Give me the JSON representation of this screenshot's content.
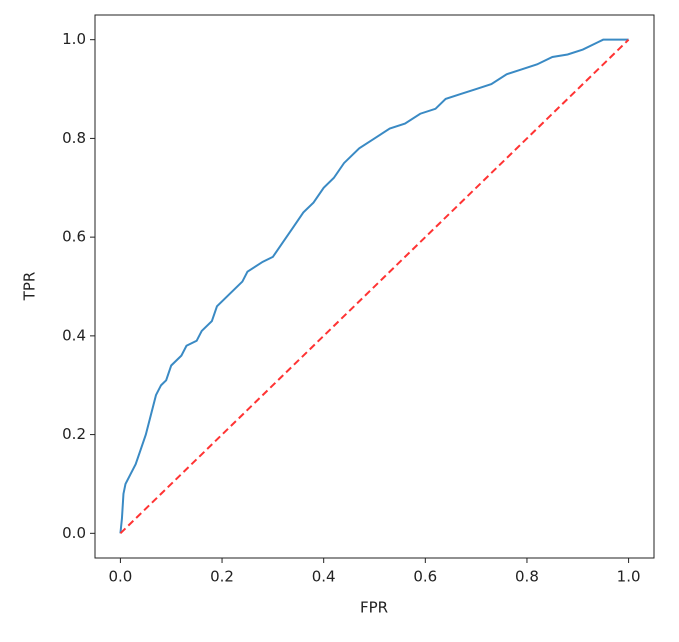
{
  "chart_data": {
    "type": "line",
    "xlabel": "FPR",
    "ylabel": "TPR",
    "xlim": [
      -0.05,
      1.05
    ],
    "ylim": [
      -0.05,
      1.05
    ],
    "xticks": [
      {
        "value": 0,
        "label": "0.0"
      },
      0.2,
      0.4,
      0.6,
      0.8,
      {
        "value": 1,
        "label": "1.0"
      }
    ],
    "yticks": [
      {
        "value": 0,
        "label": "0.0"
      },
      0.2,
      0.4,
      0.6,
      0.8,
      {
        "value": 1,
        "label": "1.0"
      }
    ],
    "grid": false,
    "series": [
      {
        "color": "#3a8ac4",
        "linestyle": "solid",
        "x": [
          0,
          0.003,
          0.006,
          0.01,
          0.02,
          0.03,
          0.04,
          0.05,
          0.06,
          0.07,
          0.08,
          0.09,
          0.1,
          0.12,
          0.13,
          0.15,
          0.16,
          0.18,
          0.19,
          0.22,
          0.24,
          0.25,
          0.28,
          0.3,
          0.32,
          0.34,
          0.36,
          0.38,
          0.4,
          0.42,
          0.44,
          0.47,
          0.5,
          0.53,
          0.56,
          0.59,
          0.62,
          0.64,
          0.67,
          0.7,
          0.73,
          0.76,
          0.79,
          0.82,
          0.85,
          0.88,
          0.91,
          0.94,
          0.95,
          1.0
        ],
        "values": [
          0,
          0.03,
          0.08,
          0.1,
          0.12,
          0.14,
          0.17,
          0.2,
          0.24,
          0.28,
          0.3,
          0.31,
          0.34,
          0.36,
          0.38,
          0.39,
          0.41,
          0.43,
          0.46,
          0.49,
          0.51,
          0.53,
          0.55,
          0.56,
          0.59,
          0.62,
          0.65,
          0.67,
          0.7,
          0.72,
          0.75,
          0.78,
          0.8,
          0.82,
          0.83,
          0.85,
          0.86,
          0.88,
          0.89,
          0.9,
          0.91,
          0.93,
          0.94,
          0.95,
          0.965,
          0.97,
          0.98,
          0.995,
          1.0,
          1.0
        ]
      },
      {
        "color": "#ff3333",
        "linestyle": "dashed",
        "x": [
          0,
          1
        ],
        "values": [
          0,
          1
        ]
      }
    ]
  }
}
